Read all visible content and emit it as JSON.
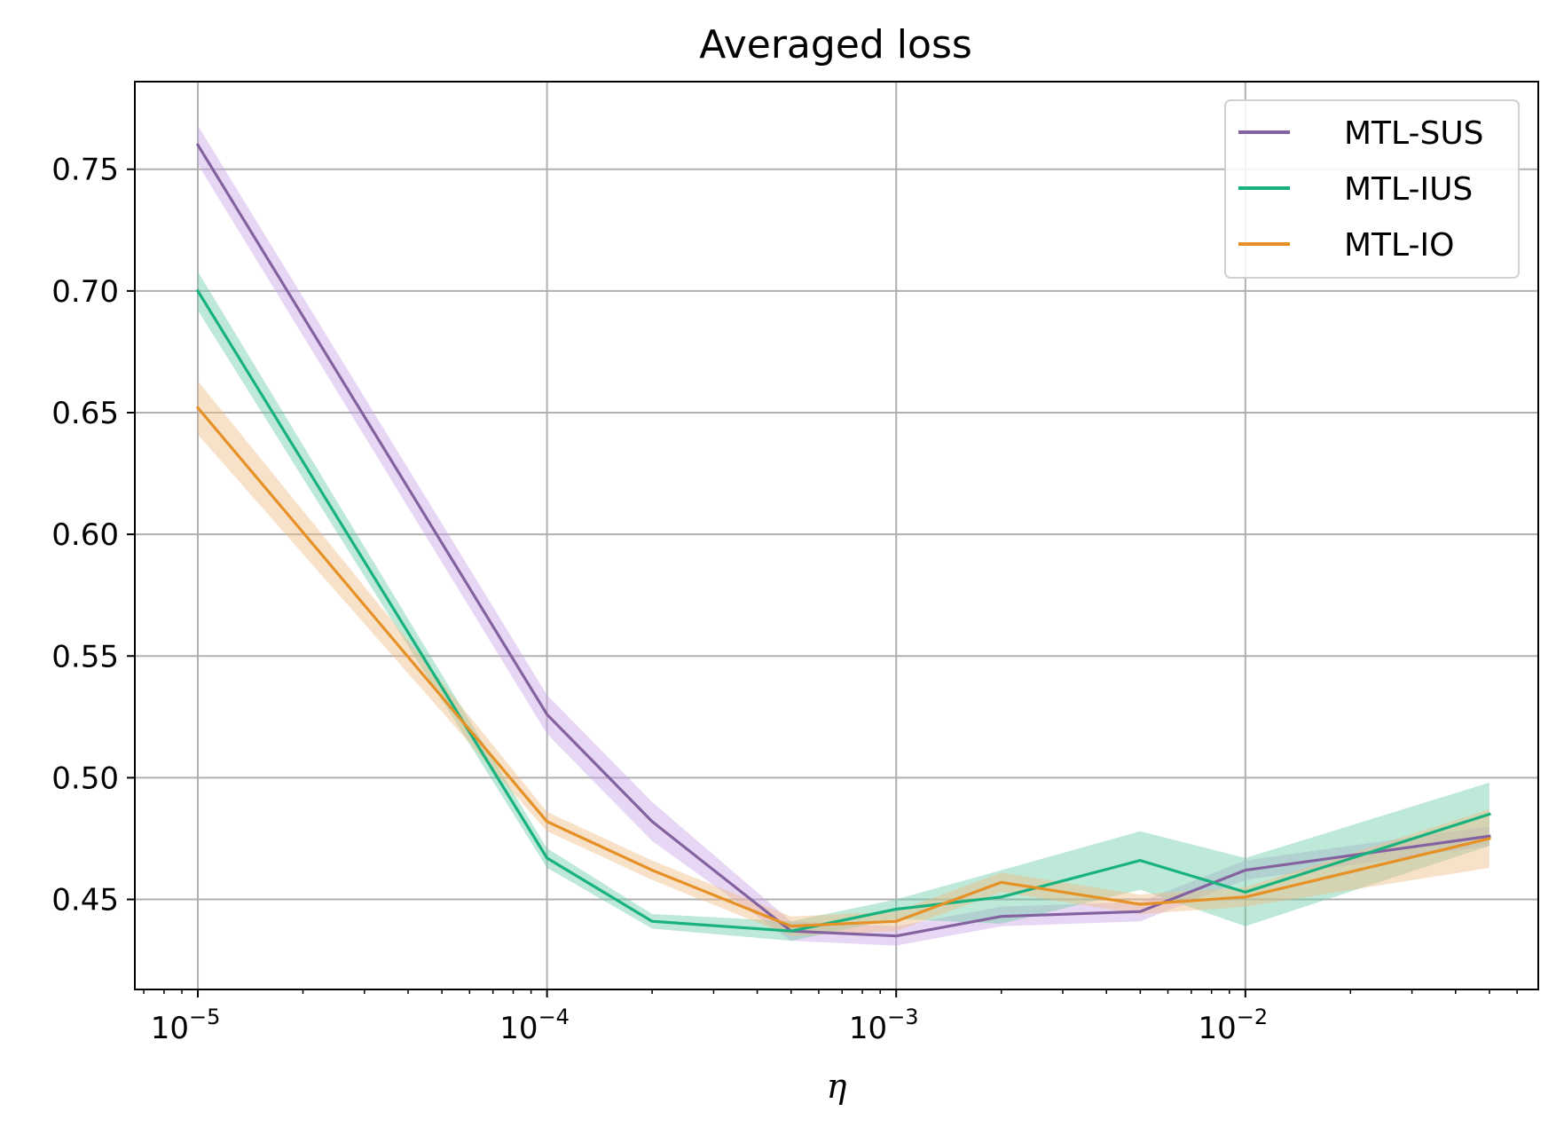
{
  "chart_data": {
    "type": "line",
    "title": "Averaged loss",
    "xlabel": "η",
    "ylabel": "",
    "xscale": "log",
    "xlim": [
      6.6e-06,
      0.069
    ],
    "ylim": [
      0.413,
      0.786
    ],
    "x_ticks": [
      {
        "value": 1e-05,
        "base": "10",
        "exp": "−5"
      },
      {
        "value": 0.0001,
        "base": "10",
        "exp": "−4"
      },
      {
        "value": 0.001,
        "base": "10",
        "exp": "−3"
      },
      {
        "value": 0.01,
        "base": "10",
        "exp": "−2"
      }
    ],
    "y_ticks": [
      {
        "value": 0.45,
        "label": "0.45"
      },
      {
        "value": 0.5,
        "label": "0.50"
      },
      {
        "value": 0.55,
        "label": "0.55"
      },
      {
        "value": 0.6,
        "label": "0.60"
      },
      {
        "value": 0.65,
        "label": "0.65"
      },
      {
        "value": 0.7,
        "label": "0.70"
      },
      {
        "value": 0.75,
        "label": "0.75"
      }
    ],
    "grid": true,
    "legend_position": "top-right",
    "x": [
      1e-05,
      0.0001,
      0.0002,
      0.0005,
      0.001,
      0.002,
      0.005,
      0.01,
      0.05
    ],
    "series": [
      {
        "name": "MTL-SUS",
        "color": "#8462a0",
        "band_color": "#c9a6e6",
        "values": [
          0.76,
          0.526,
          0.482,
          0.437,
          0.435,
          0.443,
          0.445,
          0.462,
          0.476
        ],
        "band": [
          0.008,
          0.008,
          0.008,
          0.004,
          0.004,
          0.004,
          0.004,
          0.004,
          0.004
        ]
      },
      {
        "name": "MTL-IUS",
        "color": "#18b27e",
        "band_color": "#6fcba6",
        "values": [
          0.7,
          0.467,
          0.441,
          0.437,
          0.446,
          0.451,
          0.466,
          0.453,
          0.485
        ],
        "band": [
          0.008,
          0.004,
          0.003,
          0.004,
          0.004,
          0.011,
          0.012,
          0.014,
          0.013
        ]
      },
      {
        "name": "MTL-IO",
        "color": "#e59125",
        "band_color": "#efbc88",
        "values": [
          0.652,
          0.482,
          0.462,
          0.439,
          0.441,
          0.457,
          0.448,
          0.451,
          0.475
        ],
        "band": [
          0.011,
          0.004,
          0.004,
          0.004,
          0.004,
          0.004,
          0.004,
          0.004,
          0.012
        ]
      }
    ]
  }
}
